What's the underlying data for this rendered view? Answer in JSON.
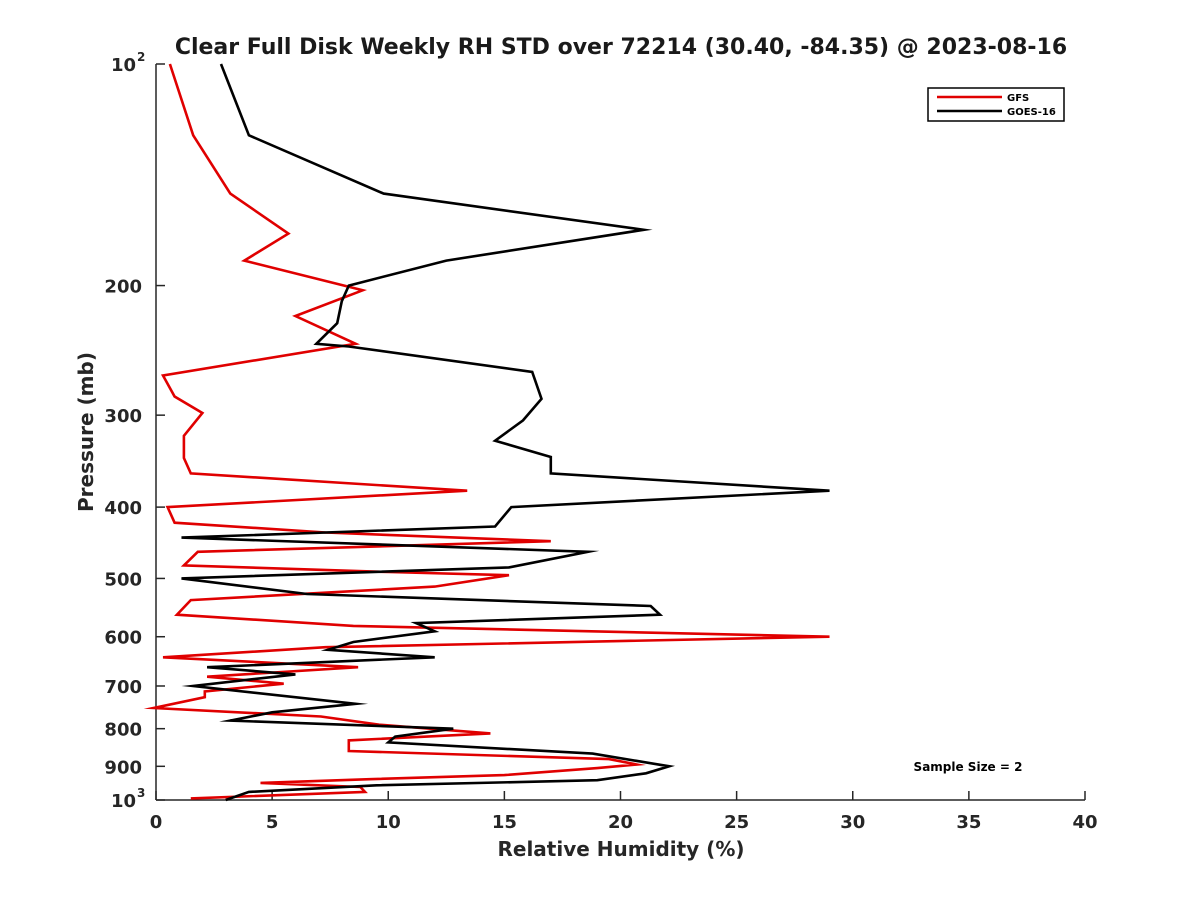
{
  "chart_data": {
    "type": "line",
    "title": "Clear Full Disk Weekly RH STD over 72214 (30.40, -84.35) @ 2023-08-16",
    "xlabel": "Relative Humidity (%)",
    "ylabel": "Pressure (mb)",
    "xlim": [
      0,
      40
    ],
    "ylim": [
      1000,
      100
    ],
    "yscale": "log",
    "y_reversed": true,
    "x_ticks": [
      0,
      5,
      10,
      15,
      20,
      25,
      30,
      35,
      40
    ],
    "x_tick_labels": [
      "0",
      "5",
      "10",
      "15",
      "20",
      "25",
      "30",
      "35",
      "40"
    ],
    "y_ticks": [
      {
        "value": 100,
        "base": "10",
        "exp": "2"
      },
      {
        "value": 200,
        "label": "200"
      },
      {
        "value": 300,
        "label": "300"
      },
      {
        "value": 400,
        "label": "400"
      },
      {
        "value": 500,
        "label": "500"
      },
      {
        "value": 600,
        "label": "600"
      },
      {
        "value": 700,
        "label": "700"
      },
      {
        "value": 800,
        "label": "800"
      },
      {
        "value": 900,
        "label": "900"
      },
      {
        "value": 1000,
        "base": "10",
        "exp": "3"
      }
    ],
    "legend_position": "top-right",
    "annotation": "Sample Size = 2",
    "series": [
      {
        "name": "GFS",
        "color": "#e00000",
        "points": [
          [
            0.6,
            100
          ],
          [
            1.6,
            125
          ],
          [
            3.2,
            150
          ],
          [
            5.7,
            170
          ],
          [
            3.8,
            185
          ],
          [
            8.9,
            203
          ],
          [
            6.0,
            220
          ],
          [
            8.6,
            240
          ],
          [
            0.3,
            265
          ],
          [
            0.8,
            283
          ],
          [
            2.0,
            298
          ],
          [
            1.2,
            320
          ],
          [
            1.2,
            343
          ],
          [
            1.5,
            360
          ],
          [
            13.4,
            380
          ],
          [
            0.5,
            400
          ],
          [
            0.8,
            420
          ],
          [
            7.3,
            433
          ],
          [
            17.0,
            445
          ],
          [
            1.8,
            460
          ],
          [
            1.2,
            480
          ],
          [
            10.0,
            490
          ],
          [
            15.2,
            495
          ],
          [
            12.0,
            513
          ],
          [
            1.5,
            535
          ],
          [
            0.9,
            560
          ],
          [
            8.5,
            580
          ],
          [
            29.0,
            600
          ],
          [
            7.3,
            620
          ],
          [
            0.3,
            640
          ],
          [
            8.7,
            660
          ],
          [
            2.2,
            680
          ],
          [
            5.5,
            695
          ],
          [
            2.1,
            712
          ],
          [
            2.1,
            725
          ],
          [
            -0.1,
            750
          ],
          [
            7.1,
            770
          ],
          [
            9.6,
            790
          ],
          [
            14.4,
            812
          ],
          [
            8.3,
            830
          ],
          [
            8.3,
            858
          ],
          [
            19.5,
            880
          ],
          [
            20.7,
            895
          ],
          [
            19.0,
            905
          ],
          [
            15.0,
            925
          ],
          [
            9.2,
            937
          ],
          [
            4.5,
            948
          ],
          [
            8.8,
            960
          ],
          [
            9.0,
            975
          ],
          [
            1.5,
            995
          ]
        ]
      },
      {
        "name": "GOES-16",
        "color": "#000000",
        "points": [
          [
            2.8,
            100
          ],
          [
            4.0,
            125
          ],
          [
            9.8,
            150
          ],
          [
            21.0,
            168
          ],
          [
            12.5,
            185
          ],
          [
            8.3,
            200
          ],
          [
            8.0,
            210
          ],
          [
            7.8,
            225
          ],
          [
            6.9,
            240
          ],
          [
            8.3,
            242
          ],
          [
            16.2,
            262
          ],
          [
            16.6,
            285
          ],
          [
            15.8,
            305
          ],
          [
            14.6,
            325
          ],
          [
            17.0,
            342
          ],
          [
            17.0,
            360
          ],
          [
            29.0,
            380
          ],
          [
            15.3,
            400
          ],
          [
            14.6,
            425
          ],
          [
            1.1,
            440
          ],
          [
            18.6,
            460
          ],
          [
            15.2,
            483
          ],
          [
            1.1,
            500
          ],
          [
            6.5,
            525
          ],
          [
            21.3,
            545
          ],
          [
            21.7,
            560
          ],
          [
            11.2,
            575
          ],
          [
            12.0,
            590
          ],
          [
            8.5,
            610
          ],
          [
            7.4,
            625
          ],
          [
            12.0,
            640
          ],
          [
            2.2,
            660
          ],
          [
            6.0,
            675
          ],
          [
            1.6,
            700
          ],
          [
            8.6,
            740
          ],
          [
            5.0,
            760
          ],
          [
            3.2,
            780
          ],
          [
            12.8,
            800
          ],
          [
            10.3,
            820
          ],
          [
            10.0,
            835
          ],
          [
            18.8,
            865
          ],
          [
            22.1,
            900
          ],
          [
            21.1,
            920
          ],
          [
            19.0,
            940
          ],
          [
            9.5,
            955
          ],
          [
            4.0,
            975
          ],
          [
            3.0,
            1000
          ]
        ]
      }
    ]
  }
}
